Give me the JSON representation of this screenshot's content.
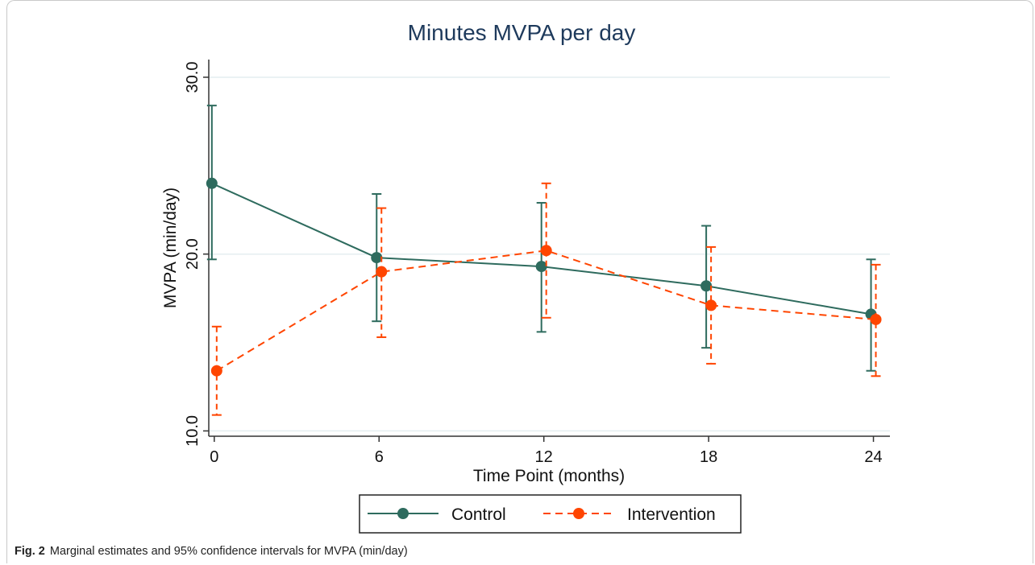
{
  "chart_data": {
    "type": "line",
    "title": "Minutes MVPA per day",
    "xlabel": "Time Point (months)",
    "ylabel": "MVPA (min/day)",
    "x": [
      0,
      6,
      12,
      18,
      24
    ],
    "xticks": [
      "0",
      "6",
      "12",
      "18",
      "24"
    ],
    "yticks": [
      "10.0",
      "20.0",
      "30.0"
    ],
    "ylim": [
      9.7,
      31.0
    ],
    "xlim": [
      -0.2,
      24.6
    ],
    "grid": "horizontal",
    "legend_position": "bottom",
    "series": [
      {
        "name": "Control",
        "color": "#2e6b5e",
        "line_style": "solid",
        "values": [
          24.0,
          19.8,
          19.3,
          18.2,
          16.6
        ],
        "ci_lower": [
          19.7,
          16.2,
          15.6,
          14.7,
          13.4
        ],
        "ci_upper": [
          28.4,
          23.4,
          22.9,
          21.6,
          19.7
        ]
      },
      {
        "name": "Intervention",
        "color": "#ff4500",
        "line_style": "dashed",
        "values": [
          13.4,
          19.0,
          20.2,
          17.1,
          16.3
        ],
        "ci_lower": [
          10.9,
          15.3,
          16.4,
          13.8,
          13.1
        ],
        "ci_upper": [
          15.9,
          22.6,
          24.0,
          20.4,
          19.4
        ]
      }
    ]
  },
  "caption": {
    "label": "Fig. 2",
    "text": "Marginal estimates and 95% confidence intervals for MVPA (min/day)"
  }
}
